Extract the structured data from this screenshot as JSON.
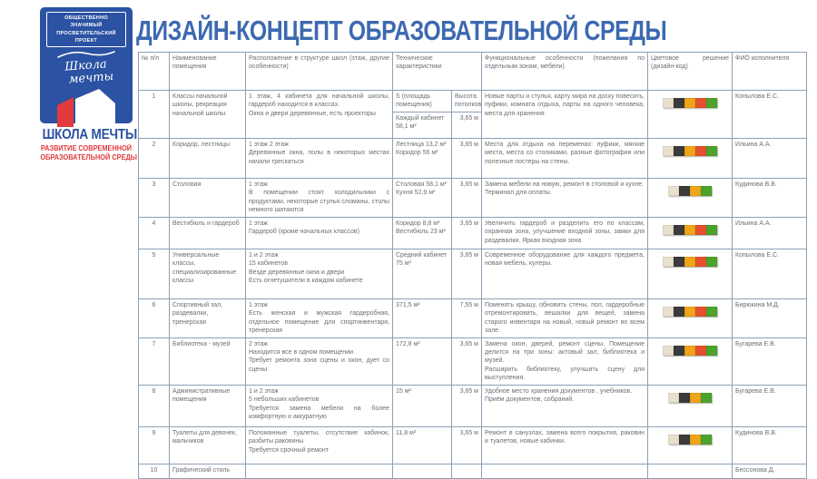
{
  "logo": {
    "top_line1": "ОБЩЕСТВЕННО ЗНАЧИМЫЙ",
    "top_line2": "ПРОСВЕТИТЕЛЬСКИЙ ПРОЕКТ",
    "script_line1": "Школа",
    "script_line2": "мечты",
    "name": "ШКОЛА МЕЧТЫ",
    "subtitle_line1": "РАЗВИТИЕ СОВРЕМЕННОЙ",
    "subtitle_line2": "ОБРАЗОВАТЕЛЬНОЙ СРЕДЫ",
    "blue": "#2b52a3",
    "red": "#e13b3d"
  },
  "title": "ДИЗАЙН-КОНЦЕПТ ОБРАЗОВАТЕЛЬНОЙ СРЕДЫ",
  "table": {
    "headers": {
      "num": "№ п/п",
      "name": "Наименование помещения",
      "location": "Расположение в структуре школ (этаж, другие особенности)",
      "tech": "Технические характеристики",
      "functional": "Функциональные особенности (пожелания по отдельным зонам, мебели)",
      "colors": "Цветовое решение (дизайн-код)",
      "fio": "ФИО исполнителя"
    },
    "tech_subheaders": {
      "area": "S (площадь помещения)",
      "height": "Высота потолков"
    },
    "palette": {
      "cream": "#e8e0cd",
      "dark": "#3b3b39",
      "orange": "#f0a418",
      "red": "#e6512d",
      "green": "#4ca32a"
    },
    "rows": [
      {
        "num": "1",
        "name": "Классы начальной школы, рекреация начальной школы",
        "location": "1 этаж, 4 кабинета для начальной школы, гардероб находится в классах.\nОкна и двери деревянные, есть проекторы",
        "tech_area": "Каждый кабинет\n58,1 м²",
        "tech_height": "3,65 м",
        "functional": "Новые парты и стулья, карту мира на доску повесить, пуфики, комната отдыха, парты на одного человека, места для хранения",
        "colors": [
          "#e8e0cd",
          "#3b3b39",
          "#f0a418",
          "#e6512d",
          "#4ca32a"
        ],
        "fio": "Копылова Е.С."
      },
      {
        "num": "2",
        "name": "Коридор, лестницы",
        "location": "1 этаж  2 этаж\nДеревянные окна, полы в некоторых местах начали трескаться",
        "tech_area": "Лестница 13,2 м²\nКоридор 56 м²",
        "tech_height": "3,65 м",
        "functional": "Места для отдыха на переменах: пуфики, мягкие места, места со столиками, разные фотографии или полезные постеры на стены.",
        "colors": [
          "#e8e0cd",
          "#3b3b39",
          "#f0a418",
          "#e6512d",
          "#4ca32a"
        ],
        "fio": "Ильина А.А."
      },
      {
        "num": "3",
        "name": "Столовая",
        "location": "1 этаж\nВ помещении стоят холодильники с продуктами, некоторые стулья сломаны, столы немного шатаются",
        "tech_area": "Столовая 58,1 м²\nКухня 52,9 м²",
        "tech_height": "3,65 м",
        "functional": "Замена мебели на новую, ремонт в столовой и кухне.\nТерминал для оплаты.",
        "colors": [
          "#e8e0cd",
          "#3b3b39",
          "#f0a418",
          "#4ca32a"
        ],
        "fio": "Кудинова В.В."
      },
      {
        "num": "4",
        "name": "Вестибюль и гардероб",
        "location": "1 этаж\nГардероб (кроме начальных классов)",
        "tech_area": "Коридор  8,8 м²\nВестибюль 23 м²",
        "tech_height": "3,65 м",
        "functional": "Увеличить гардероб и разделить его по классам, охранная зона, улучшение входной зоны, замки для раздевалки. Яркая входная зона",
        "colors": [
          "#e8e0cd",
          "#3b3b39",
          "#f0a418",
          "#e6512d",
          "#4ca32a"
        ],
        "fio": "Ильина А.А."
      },
      {
        "num": "5",
        "name": "Универсальные классы, специализированные классы",
        "location": "1 и 2 этаж\n15 кабинетов\nВезде деревянные окна и двери\nЕсть огнетушители в каждом кабинете",
        "tech_area": "Средний кабинет\n75 м²",
        "tech_height": "3,65 м",
        "functional": "Современное оборудование для каждого предмета, новая мебель, кулеры.",
        "colors": [
          "#e8e0cd",
          "#3b3b39",
          "#f0a418",
          "#e6512d",
          "#4ca32a"
        ],
        "fio": "Копылова Е.С."
      },
      {
        "num": "6",
        "name": "Спортивный зал, раздевалки, тренерская",
        "location": "1 этаж\nЕсть женская и мужская гардеробная, отдельное помещение для спортинвентаря, тренерская",
        "tech_area": "371,5 м²",
        "tech_height": "7,55 м",
        "functional": "Поменять крышу, обновить стены, пол, гардеробные отремонтировать, вешалки для вещей, замена старого инвентаря на новый, новый ремонт во всем зале.",
        "colors": [
          "#e8e0cd",
          "#3b3b39",
          "#f0a418",
          "#e6512d",
          "#4ca32a"
        ],
        "fio": "Бирюкина М.Д."
      },
      {
        "num": "7",
        "name": "Библиотека - музей",
        "location": "2 этаж\nНаходится все в одном помещении\nТребует ремонта зона сцены и окон, дует со сцены",
        "tech_area": "172,8 м²",
        "tech_height": "3,65 м",
        "functional": "Замена окон, дверей, ремонт сцены. Помещение делится на три зоны: актовый зал, библиотека и музей.\nРасширить библиотеку, улучшить сцену для выступления.",
        "colors": [
          "#e8e0cd",
          "#3b3b39",
          "#f0a418",
          "#e6512d",
          "#4ca32a"
        ],
        "fio": "Бугарева Е.В."
      },
      {
        "num": "8",
        "name": "Административные помещения",
        "location": "1 и 2 этаж\n5 небольших кабинетов\nТребуется замена мебели на более комфортную и аккуратную",
        "tech_area": "15 м²",
        "tech_height": "3,65 м",
        "functional": "Удобное место хранения документов , учебников.\nПриём документов, собраний.",
        "colors": [
          "#e8e0cd",
          "#3b3b39",
          "#f0a418",
          "#4ca32a"
        ],
        "fio": "Бугарева Е.В."
      },
      {
        "num": "9",
        "name": "Туалеты для девочек, мальчиков",
        "location": "Поломанные туалеты, отсутствие кабинок, разбиты раковины\nТребуется срочный ремонт",
        "tech_area": "11,8 м²",
        "tech_height": "3,65 м",
        "functional": "Ремонт в санузлах, замена всего покрытия, раковин и туалетов, новые кабинки.",
        "colors": [
          "#e8e0cd",
          "#3b3b39",
          "#f0a418",
          "#4ca32a"
        ],
        "fio": "Кудинова В.В."
      },
      {
        "num": "10",
        "name": "Графический стиль",
        "location": "",
        "tech_area": "",
        "tech_height": "",
        "functional": "",
        "colors": [],
        "fio": "Бессонова Д."
      }
    ]
  }
}
